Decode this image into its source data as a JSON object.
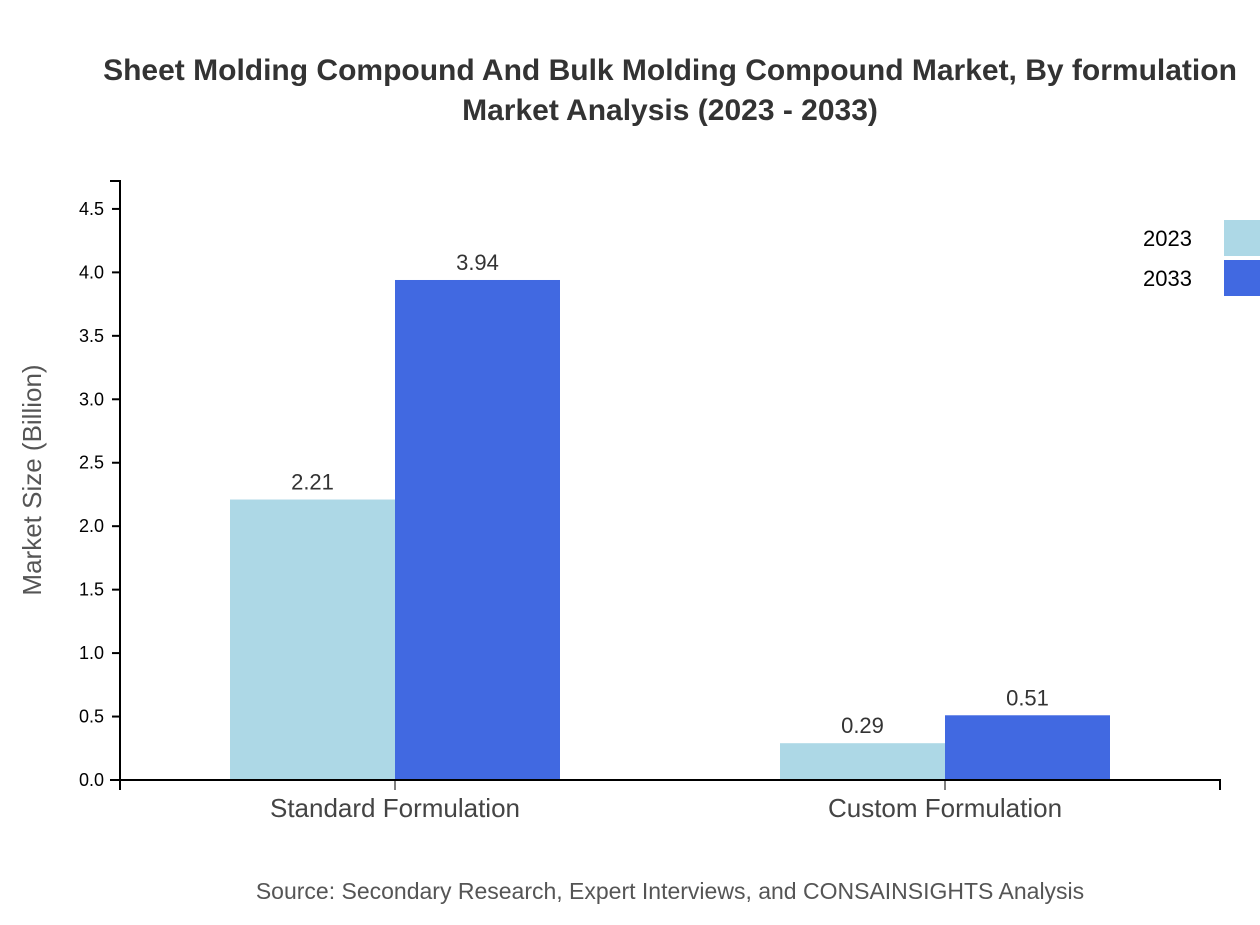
{
  "chart_data": {
    "type": "bar",
    "title_lines": [
      "Sheet Molding Compound And Bulk Molding Compound Market, By formulation",
      "Market Analysis (2023 - 2033)"
    ],
    "xlabel": "",
    "ylabel": "Market Size (Billion)",
    "categories": [
      "Standard Formulation",
      "Custom Formulation"
    ],
    "series": [
      {
        "name": "2023",
        "values": [
          2.21,
          0.29
        ],
        "color": "#ADD8E6"
      },
      {
        "name": "2033",
        "values": [
          3.94,
          0.51
        ],
        "color": "#4169E1"
      }
    ],
    "ylim": [
      0,
      4.72
    ],
    "yticks": [
      "0.0",
      "0.5",
      "1.0",
      "1.5",
      "2.0",
      "2.5",
      "3.0",
      "3.5",
      "4.0",
      "4.5"
    ],
    "grid": false,
    "legend_position": "top-right",
    "source": "Source: Secondary Research, Expert Interviews, and CONSAINSIGHTS Analysis"
  }
}
